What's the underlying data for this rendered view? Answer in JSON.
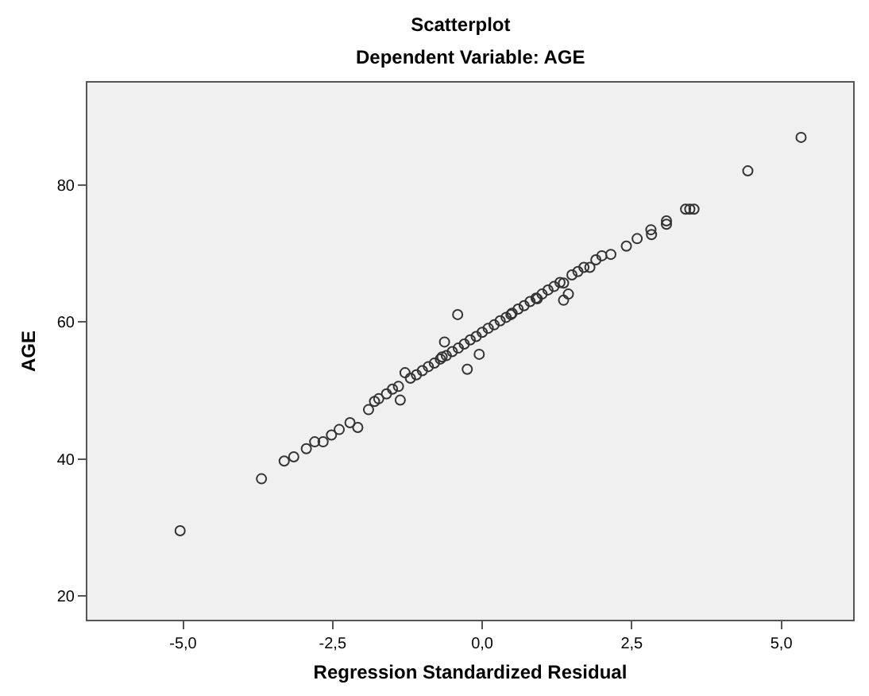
{
  "chart_data": {
    "type": "scatter",
    "title": "Scatterplot",
    "subtitle": "Dependent Variable: AGE",
    "xlabel": "Regression Standardized Residual",
    "ylabel": "AGE",
    "x": [
      -5.05,
      -3.69,
      -3.31,
      -3.15,
      -2.94,
      -2.8,
      -2.66,
      -2.52,
      -2.39,
      -2.21,
      -2.08,
      -1.9,
      -1.8,
      -1.73,
      -1.6,
      -1.5,
      -1.4,
      -1.37,
      -1.29,
      -1.2,
      -1.1,
      -1.0,
      -0.9,
      -0.8,
      -0.7,
      -0.67,
      -0.63,
      -0.6,
      -0.5,
      -0.41,
      -0.4,
      -0.3,
      -0.25,
      -0.2,
      -0.1,
      -0.05,
      0.0,
      0.1,
      0.2,
      0.3,
      0.4,
      0.48,
      0.5,
      0.6,
      0.7,
      0.8,
      0.9,
      0.92,
      1.0,
      1.1,
      1.2,
      1.3,
      1.36,
      1.36,
      1.44,
      1.5,
      1.6,
      1.7,
      1.8,
      1.9,
      2.0,
      2.15,
      2.41,
      2.59,
      2.82,
      2.83,
      3.08,
      3.08,
      3.4,
      3.47,
      3.54,
      4.44,
      5.33
    ],
    "values": [
      29.5,
      37.1,
      39.7,
      40.3,
      41.5,
      42.5,
      42.5,
      43.5,
      44.3,
      45.3,
      44.6,
      47.2,
      48.4,
      48.8,
      49.5,
      50.2,
      50.6,
      48.6,
      52.6,
      51.8,
      52.3,
      52.9,
      53.5,
      54.0,
      54.6,
      54.9,
      57.1,
      55.1,
      55.7,
      61.1,
      56.2,
      56.8,
      53.1,
      57.4,
      57.9,
      55.3,
      58.5,
      59.1,
      59.6,
      60.2,
      60.7,
      61.1,
      61.3,
      61.9,
      62.4,
      63.0,
      63.5,
      63.4,
      64.1,
      64.7,
      65.2,
      65.8,
      65.7,
      63.2,
      64.1,
      66.9,
      67.4,
      68.0,
      68.0,
      69.1,
      69.7,
      69.9,
      71.1,
      72.2,
      73.5,
      72.8,
      74.8,
      74.3,
      76.5,
      76.5,
      76.5,
      82.1,
      87.0
    ],
    "color": "#333333",
    "marker": "circle",
    "xlim": [
      -6.6,
      6.2
    ],
    "ylim": [
      16.5,
      95
    ],
    "xticks": [
      {
        "value": -5,
        "label": "-5,0"
      },
      {
        "value": -2.5,
        "label": "-2,5"
      },
      {
        "value": 0,
        "label": "0,0"
      },
      {
        "value": 2.5,
        "label": "2,5"
      },
      {
        "value": 5,
        "label": "5,0"
      }
    ],
    "yticks": [
      20,
      40,
      60,
      80
    ]
  }
}
